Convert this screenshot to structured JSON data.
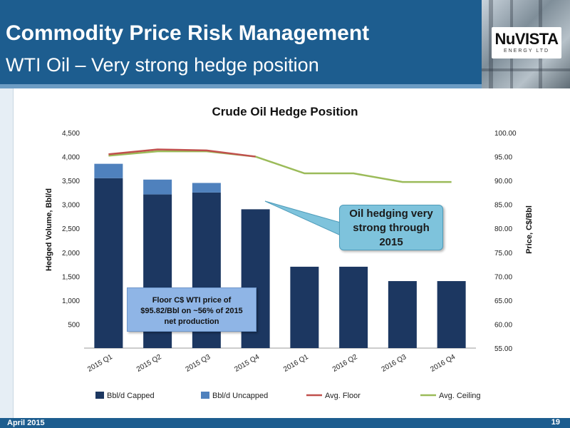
{
  "header": {
    "title": "Commodity Price Risk Management",
    "subtitle": "WTI Oil – Very strong hedge position",
    "logo_text": "NuVISTA",
    "logo_subtext": "ENERGY LTD"
  },
  "footer": {
    "date": "April 2015",
    "page": "19"
  },
  "callouts": {
    "hedging": "Oil hedging very strong through 2015",
    "floor": "Floor C$ WTI price of $95.82/Bbl on ~56% of 2015 net production"
  },
  "colors": {
    "capped": "#1c3761",
    "uncapped": "#4f81bd",
    "floor": "#c0504d",
    "ceiling": "#9bbb59",
    "header": "#1d5d8f"
  },
  "chart_data": {
    "type": "bar",
    "title": "Crude Oil Hedge Position",
    "categories": [
      "2015 Q1",
      "2015 Q2",
      "2015 Q3",
      "2015 Q4",
      "2016 Q1",
      "2016 Q2",
      "2016 Q3",
      "2016 Q4"
    ],
    "series": [
      {
        "name": "Bbl/d Capped",
        "type": "bar",
        "axis": "left",
        "values": [
          3550,
          3210,
          3250,
          2900,
          1700,
          1700,
          1400,
          1400
        ]
      },
      {
        "name": "Bbl/d Uncapped",
        "type": "bar",
        "axis": "left",
        "values": [
          300,
          310,
          200,
          0,
          0,
          0,
          0,
          0
        ]
      },
      {
        "name": "Avg. Floor",
        "type": "line",
        "axis": "right",
        "values": [
          95.5,
          96.5,
          96.3,
          95.0,
          null,
          null,
          null,
          null
        ]
      },
      {
        "name": "Avg. Ceiling",
        "type": "line",
        "axis": "right",
        "values": [
          95.2,
          96.1,
          96.1,
          95.0,
          91.5,
          91.5,
          89.7,
          89.7
        ]
      }
    ],
    "ylabel": "Hedged Volume, Bbl/d",
    "y2label": "Price, C$/Bbl",
    "ylim": [
      0,
      4500
    ],
    "y2lim": [
      55,
      100
    ],
    "yticks": [
      "500",
      "1,000",
      "1,500",
      "2,000",
      "2,500",
      "3,000",
      "3,500",
      "4,000",
      "4,500"
    ],
    "y2ticks": [
      "55.00",
      "60.00",
      "65.00",
      "70.00",
      "75.00",
      "80.00",
      "85.00",
      "90.00",
      "95.00",
      "100.00"
    ],
    "legend": "bottom"
  }
}
